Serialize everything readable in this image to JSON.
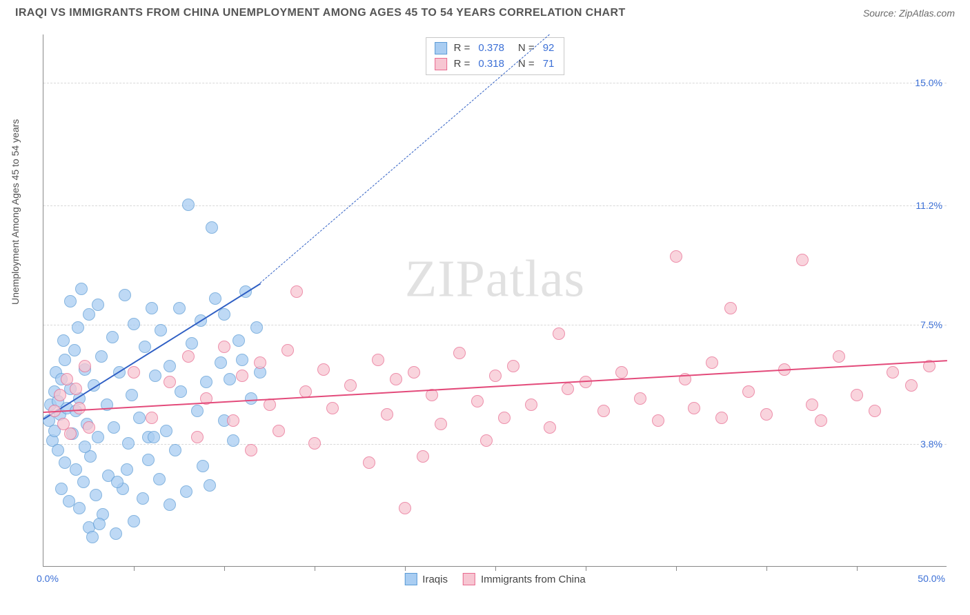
{
  "title": "IRAQI VS IMMIGRANTS FROM CHINA UNEMPLOYMENT AMONG AGES 45 TO 54 YEARS CORRELATION CHART",
  "source": "Source: ZipAtlas.com",
  "ylabel": "Unemployment Among Ages 45 to 54 years",
  "watermark": "ZIPatlas",
  "chart": {
    "type": "scatter",
    "xlim": [
      0,
      50
    ],
    "ylim": [
      0,
      16.5
    ],
    "xlim_labels": [
      "0.0%",
      "50.0%"
    ],
    "y_gridlines": [
      3.8,
      7.5,
      11.2,
      15.0
    ],
    "y_grid_labels": [
      "3.8%",
      "7.5%",
      "11.2%",
      "15.0%"
    ],
    "x_ticks_pct": [
      10,
      20,
      30,
      40,
      50,
      60,
      70,
      80,
      90
    ],
    "background_color": "#ffffff",
    "grid_color": "#d8d8d8",
    "axis_color": "#888888",
    "tick_label_color": "#3b6fd6",
    "marker_radius": 9,
    "marker_border": 1.4,
    "marker_opacity_fill": 0.28
  },
  "series": [
    {
      "name": "Iraqis",
      "legend_label": "Iraqis",
      "color_fill": "#a9cdf2",
      "color_stroke": "#5b9bd5",
      "trend_color": "#2f5fc4",
      "trend": {
        "x1": 0,
        "y1": 4.6,
        "x2": 12,
        "y2": 8.8,
        "dash_to_x": 28,
        "dash_to_y": 16.5
      },
      "stats": {
        "R": "0.378",
        "N": "92"
      },
      "points": [
        [
          0.3,
          4.5
        ],
        [
          0.4,
          5.0
        ],
        [
          0.5,
          3.9
        ],
        [
          0.6,
          5.4
        ],
        [
          0.6,
          4.2
        ],
        [
          0.7,
          6.0
        ],
        [
          0.8,
          5.1
        ],
        [
          0.8,
          3.6
        ],
        [
          0.9,
          4.7
        ],
        [
          1.0,
          2.4
        ],
        [
          1.0,
          5.8
        ],
        [
          1.1,
          7.0
        ],
        [
          1.2,
          3.2
        ],
        [
          1.2,
          6.4
        ],
        [
          1.3,
          4.9
        ],
        [
          1.4,
          2.0
        ],
        [
          1.5,
          5.5
        ],
        [
          1.5,
          8.2
        ],
        [
          1.6,
          4.1
        ],
        [
          1.7,
          6.7
        ],
        [
          1.8,
          3.0
        ],
        [
          1.9,
          7.4
        ],
        [
          2.0,
          1.8
        ],
        [
          2.0,
          5.2
        ],
        [
          2.1,
          8.6
        ],
        [
          2.2,
          2.6
        ],
        [
          2.3,
          6.1
        ],
        [
          2.4,
          4.4
        ],
        [
          2.5,
          1.2
        ],
        [
          2.5,
          7.8
        ],
        [
          2.6,
          3.4
        ],
        [
          2.8,
          5.6
        ],
        [
          2.9,
          2.2
        ],
        [
          3.0,
          4.0
        ],
        [
          3.0,
          8.1
        ],
        [
          3.2,
          6.5
        ],
        [
          3.3,
          1.6
        ],
        [
          3.5,
          5.0
        ],
        [
          3.6,
          2.8
        ],
        [
          3.8,
          7.1
        ],
        [
          3.9,
          4.3
        ],
        [
          4.0,
          1.0
        ],
        [
          4.2,
          6.0
        ],
        [
          4.4,
          2.4
        ],
        [
          4.5,
          8.4
        ],
        [
          4.7,
          3.8
        ],
        [
          4.9,
          5.3
        ],
        [
          5.0,
          1.4
        ],
        [
          5.0,
          7.5
        ],
        [
          5.3,
          4.6
        ],
        [
          5.5,
          2.1
        ],
        [
          5.6,
          6.8
        ],
        [
          5.8,
          3.3
        ],
        [
          6.0,
          8.0
        ],
        [
          6.2,
          5.9
        ],
        [
          6.4,
          2.7
        ],
        [
          6.5,
          7.3
        ],
        [
          6.8,
          4.2
        ],
        [
          7.0,
          1.9
        ],
        [
          7.0,
          6.2
        ],
        [
          7.3,
          3.6
        ],
        [
          7.5,
          8.0
        ],
        [
          7.6,
          5.4
        ],
        [
          7.9,
          2.3
        ],
        [
          8.0,
          11.2
        ],
        [
          8.2,
          6.9
        ],
        [
          8.5,
          4.8
        ],
        [
          8.7,
          7.6
        ],
        [
          8.8,
          3.1
        ],
        [
          9.0,
          5.7
        ],
        [
          9.2,
          2.5
        ],
        [
          9.3,
          10.5
        ],
        [
          9.5,
          8.3
        ],
        [
          9.8,
          6.3
        ],
        [
          10.0,
          4.5
        ],
        [
          10.0,
          7.8
        ],
        [
          10.3,
          5.8
        ],
        [
          10.5,
          3.9
        ],
        [
          10.8,
          7.0
        ],
        [
          11.0,
          6.4
        ],
        [
          11.2,
          8.5
        ],
        [
          11.5,
          5.2
        ],
        [
          11.8,
          7.4
        ],
        [
          12.0,
          6.0
        ],
        [
          5.8,
          4.0
        ],
        [
          3.1,
          1.3
        ],
        [
          2.7,
          0.9
        ],
        [
          4.1,
          2.6
        ],
        [
          1.8,
          4.8
        ],
        [
          2.3,
          3.7
        ],
        [
          6.1,
          4.0
        ],
        [
          4.6,
          3.0
        ]
      ]
    },
    {
      "name": "Immigrants from China",
      "legend_label": "Immigrants from China",
      "color_fill": "#f7c6d2",
      "color_stroke": "#e86a8f",
      "trend_color": "#e34a7a",
      "trend": {
        "x1": 0,
        "y1": 4.8,
        "x2": 50,
        "y2": 6.4
      },
      "stats": {
        "R": "0.318",
        "N": "71"
      },
      "points": [
        [
          0.6,
          4.8
        ],
        [
          0.9,
          5.3
        ],
        [
          1.1,
          4.4
        ],
        [
          1.3,
          5.8
        ],
        [
          1.5,
          4.1
        ],
        [
          1.8,
          5.5
        ],
        [
          2.0,
          4.9
        ],
        [
          2.3,
          6.2
        ],
        [
          2.5,
          4.3
        ],
        [
          5.0,
          6.0
        ],
        [
          6.0,
          4.6
        ],
        [
          7.0,
          5.7
        ],
        [
          8.0,
          6.5
        ],
        [
          8.5,
          4.0
        ],
        [
          9.0,
          5.2
        ],
        [
          10.0,
          6.8
        ],
        [
          10.5,
          4.5
        ],
        [
          11.0,
          5.9
        ],
        [
          11.5,
          3.6
        ],
        [
          12.0,
          6.3
        ],
        [
          12.5,
          5.0
        ],
        [
          13.0,
          4.2
        ],
        [
          13.5,
          6.7
        ],
        [
          14.0,
          8.5
        ],
        [
          14.5,
          5.4
        ],
        [
          15.0,
          3.8
        ],
        [
          15.5,
          6.1
        ],
        [
          16.0,
          4.9
        ],
        [
          17.0,
          5.6
        ],
        [
          18.0,
          3.2
        ],
        [
          18.5,
          6.4
        ],
        [
          19.0,
          4.7
        ],
        [
          19.5,
          5.8
        ],
        [
          20.0,
          1.8
        ],
        [
          20.5,
          6.0
        ],
        [
          21.0,
          3.4
        ],
        [
          21.5,
          5.3
        ],
        [
          22.0,
          4.4
        ],
        [
          23.0,
          6.6
        ],
        [
          24.0,
          5.1
        ],
        [
          24.5,
          3.9
        ],
        [
          25.0,
          5.9
        ],
        [
          25.5,
          4.6
        ],
        [
          26.0,
          6.2
        ],
        [
          27.0,
          5.0
        ],
        [
          28.0,
          4.3
        ],
        [
          28.5,
          7.2
        ],
        [
          29.0,
          5.5
        ],
        [
          30.0,
          5.7
        ],
        [
          31.0,
          4.8
        ],
        [
          32.0,
          6.0
        ],
        [
          33.0,
          5.2
        ],
        [
          34.0,
          4.5
        ],
        [
          35.0,
          9.6
        ],
        [
          35.5,
          5.8
        ],
        [
          36.0,
          4.9
        ],
        [
          37.0,
          6.3
        ],
        [
          37.5,
          4.6
        ],
        [
          38.0,
          8.0
        ],
        [
          39.0,
          5.4
        ],
        [
          40.0,
          4.7
        ],
        [
          41.0,
          6.1
        ],
        [
          42.0,
          9.5
        ],
        [
          42.5,
          5.0
        ],
        [
          43.0,
          4.5
        ],
        [
          44.0,
          6.5
        ],
        [
          45.0,
          5.3
        ],
        [
          46.0,
          4.8
        ],
        [
          47.0,
          6.0
        ],
        [
          48.0,
          5.6
        ],
        [
          49.0,
          6.2
        ]
      ]
    }
  ],
  "stats_box_labels": {
    "R": "R =",
    "N": "N ="
  },
  "bottom_legend": {
    "items": [
      "Iraqis",
      "Immigrants from China"
    ]
  }
}
